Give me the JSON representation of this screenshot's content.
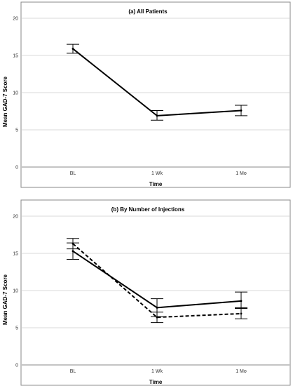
{
  "chart_data": [
    {
      "type": "line",
      "title": "(a) All Patients",
      "xlabel": "Time",
      "ylabel": "Mean GAD-7 Score",
      "categories": [
        "BL",
        "1 Wk",
        "1 Mo"
      ],
      "ylim": [
        0,
        20
      ],
      "yticks": [
        0,
        5,
        10,
        15,
        20
      ],
      "grid": "horizontal",
      "series": [
        {
          "style": "solid",
          "values": [
            15.9,
            6.9,
            7.6
          ],
          "err_low": [
            15.3,
            6.3,
            6.9
          ],
          "err_high": [
            16.5,
            7.6,
            8.3
          ]
        }
      ]
    },
    {
      "type": "line",
      "title": "(b) By Number of Injections",
      "xlabel": "Time",
      "ylabel": "Mean GAD-7 Score",
      "categories": [
        "BL",
        "1 Wk",
        "1 Mo"
      ],
      "ylim": [
        0,
        20
      ],
      "yticks": [
        0,
        5,
        10,
        15,
        20
      ],
      "grid": "horizontal",
      "series": [
        {
          "style": "solid",
          "values": [
            15.3,
            7.7,
            8.6
          ],
          "err_low": [
            14.2,
            6.5,
            7.6
          ],
          "err_high": [
            16.4,
            8.9,
            9.8
          ]
        },
        {
          "style": "dashed",
          "values": [
            16.3,
            6.4,
            6.9
          ],
          "err_low": [
            15.6,
            5.7,
            6.2
          ],
          "err_high": [
            17.0,
            7.1,
            7.7
          ]
        }
      ]
    }
  ]
}
